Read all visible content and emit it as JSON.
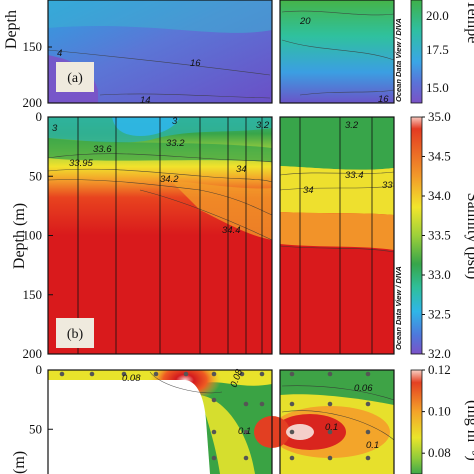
{
  "chart_data": [
    {
      "panel": "(a)",
      "type": "heatmap",
      "ylabel": "Depth",
      "colorbar_label": "Tempe",
      "colorbar_ticks": [
        "20.0",
        "17.5",
        "15.0"
      ],
      "colorbar_range": [
        14,
        21.5
      ],
      "ytick_labels": [
        "150",
        "200"
      ],
      "contour_labels": [
        "4",
        "16",
        "14",
        "20",
        "16"
      ],
      "watermark": "Ocean Data View / DIVA",
      "colors": [
        "#6a4fc6",
        "#5a73d8",
        "#3aa6e6",
        "#2fc3a6",
        "#35b24a",
        "#8ccf3a"
      ]
    },
    {
      "panel": "(b)",
      "type": "heatmap",
      "ylabel": "Depth (m)",
      "colorbar_label": "Salinity (psu)",
      "colorbar_ticks": [
        "35.0",
        "34.5",
        "34.0",
        "33.5",
        "33.0",
        "32.5",
        "32.0"
      ],
      "colorbar_range": [
        32.0,
        35.0
      ],
      "ytick_labels": [
        "0",
        "50",
        "100",
        "150",
        "200"
      ],
      "depth_range": [
        0,
        200
      ],
      "contour_labels": [
        "3",
        "3",
        "3.2",
        "3.2",
        "33.6",
        "33.2",
        "33.95",
        "34.2",
        "34",
        "33.4",
        "33",
        "34",
        "34.4"
      ],
      "watermark": "Ocean Data View / DIVA",
      "colors": [
        "#7b52c8",
        "#4f79dc",
        "#2fb7e8",
        "#2fbf9a",
        "#38a84a",
        "#a5d23c",
        "#f0ea2c",
        "#f7b027",
        "#ef5b22",
        "#d7191c"
      ]
    },
    {
      "panel": "(c)",
      "type": "heatmap",
      "ylabel": "(m)",
      "colorbar_label": "(mg m⁻³)",
      "colorbar_ticks": [
        "0.12",
        "0.10",
        "0.08"
      ],
      "colorbar_range": [
        0.07,
        0.12
      ],
      "ytick_labels": [
        "0",
        "50"
      ],
      "contour_labels": [
        "0.08",
        "0.08",
        "0.06",
        "0.1",
        "0.1",
        "0.1"
      ],
      "colors": [
        "#3a9f3e",
        "#78c23a",
        "#e8e52a",
        "#f6ad2a",
        "#e94f22",
        "#cf1b1e",
        "#f5d5d2"
      ]
    }
  ]
}
